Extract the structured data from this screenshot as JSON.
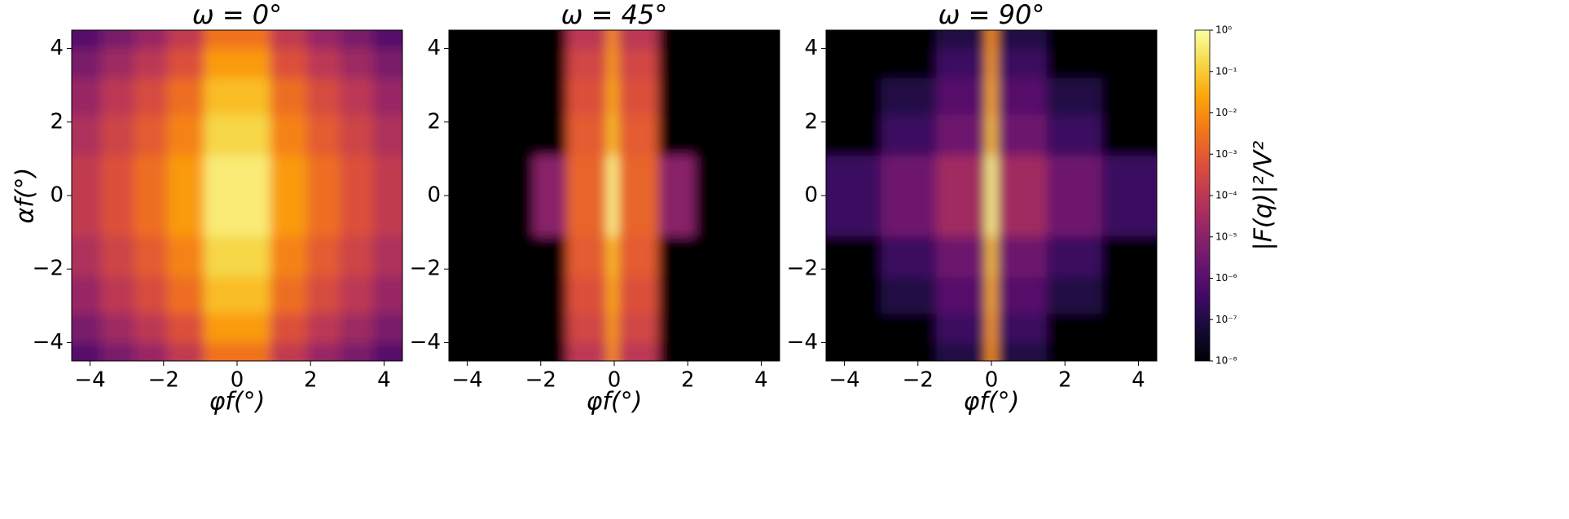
{
  "chart_data": [
    {
      "type": "heatmap",
      "title": "ω = 0°",
      "xlabel": "φf(°)",
      "ylabel": "αf(°)",
      "x": [
        -4.5,
        -3.7,
        -2.8,
        -1.9,
        -0.9,
        0.9,
        1.9,
        2.8,
        3.7,
        4.5
      ],
      "y": [
        -4.5,
        -4.0,
        -3.2,
        -2.2,
        -1.1,
        1.1,
        2.2,
        3.2,
        4.0,
        4.5
      ],
      "z": [
        [
          1e-06,
          5e-06,
          2e-05,
          0.00013,
          0.003,
          0.00013,
          2e-05,
          5e-06,
          1e-06
        ],
        [
          5e-06,
          2.5e-05,
          0.0001,
          0.0006,
          0.016,
          0.0006,
          0.0001,
          2.5e-05,
          5e-06
        ],
        [
          2e-05,
          0.0001,
          0.0004,
          0.0025,
          0.06,
          0.0025,
          0.0004,
          0.0001,
          2e-05
        ],
        [
          5e-05,
          0.00025,
          0.001,
          0.006,
          0.16,
          0.006,
          0.001,
          0.00025,
          5e-05
        ],
        [
          0.00013,
          0.0006,
          0.0025,
          0.016,
          0.4,
          0.016,
          0.0025,
          0.0006,
          0.00013
        ],
        [
          5e-05,
          0.00025,
          0.001,
          0.006,
          0.16,
          0.006,
          0.001,
          0.00025,
          5e-05
        ],
        [
          2e-05,
          0.0001,
          0.0004,
          0.0025,
          0.06,
          0.0025,
          0.0004,
          0.0001,
          2e-05
        ],
        [
          5e-06,
          2.5e-05,
          0.0001,
          0.0006,
          0.016,
          0.0006,
          0.0001,
          2.5e-05,
          5e-06
        ],
        [
          1e-06,
          5e-06,
          2e-05,
          0.00013,
          0.003,
          0.00013,
          2e-05,
          5e-06,
          1e-06
        ]
      ],
      "xlim": [
        -4.5,
        4.5
      ],
      "ylim": [
        -4.5,
        4.5
      ],
      "xticks": [
        {
          "value": -4,
          "label": "−4"
        },
        {
          "value": -2,
          "label": "−2"
        },
        0,
        2,
        4
      ],
      "yticks": [
        {
          "value": -4,
          "label": "−4"
        },
        {
          "value": -2,
          "label": "−2"
        },
        0,
        2,
        4
      ]
    },
    {
      "type": "heatmap",
      "title": "ω = 45°",
      "xlabel": "φf(°)",
      "x": [
        -4.5,
        -2.2,
        -1.3,
        -0.2,
        0.1,
        1.2,
        2.2,
        4.5
      ],
      "y": [
        -4.5,
        -4.0,
        -3.2,
        -2.2,
        -1.1,
        1.1,
        2.2,
        3.2,
        4.0,
        4.5
      ],
      "z": [
        [
          1e-08,
          1e-08,
          0.0001,
          0.01,
          0.0001,
          1e-08,
          1e-08
        ],
        [
          1e-08,
          1e-08,
          0.0003,
          0.016,
          0.0003,
          1e-08,
          1e-08
        ],
        [
          1e-08,
          1e-08,
          0.0006,
          0.03,
          0.0006,
          1e-08,
          1e-08
        ],
        [
          1e-08,
          1e-08,
          0.001,
          0.06,
          0.001,
          1e-08,
          1e-08
        ],
        [
          1e-08,
          1e-05,
          0.0016,
          0.6,
          0.0016,
          1e-05,
          1e-08
        ],
        [
          1e-08,
          1e-08,
          0.001,
          0.06,
          0.001,
          1e-08,
          1e-08
        ],
        [
          1e-08,
          1e-08,
          0.0006,
          0.03,
          0.0006,
          1e-08,
          1e-08
        ],
        [
          1e-08,
          1e-08,
          0.0003,
          0.016,
          0.0003,
          1e-08,
          1e-08
        ],
        [
          1e-08,
          1e-08,
          0.0001,
          0.01,
          0.0001,
          1e-08,
          1e-08
        ]
      ],
      "xlim": [
        -4.5,
        4.5
      ],
      "ylim": [
        -4.5,
        4.5
      ],
      "xticks": [
        {
          "value": -4,
          "label": "−4"
        },
        {
          "value": -2,
          "label": "−2"
        },
        0,
        2,
        4
      ],
      "yticks": [
        {
          "value": -4,
          "label": "−4"
        },
        {
          "value": -2,
          "label": "−2"
        },
        0,
        2,
        4
      ]
    },
    {
      "type": "heatmap",
      "title": "ω = 90°",
      "xlabel": "φf(°)",
      "x": [
        -4.5,
        -3.0,
        -1.5,
        -0.15,
        0.15,
        1.5,
        3.0,
        4.5
      ],
      "y": [
        -4.5,
        -4.0,
        -3.2,
        -2.2,
        -1.1,
        1.1,
        2.2,
        3.2,
        4.0,
        4.5
      ],
      "z": [
        [
          1e-08,
          1e-08,
          1e-07,
          0.01,
          1e-07,
          1e-08,
          1e-08
        ],
        [
          1e-08,
          1e-08,
          3e-07,
          0.016,
          3e-07,
          1e-08,
          1e-08
        ],
        [
          1e-08,
          1e-07,
          1e-06,
          0.03,
          1e-06,
          1e-07,
          1e-08
        ],
        [
          1e-08,
          3e-07,
          3e-06,
          0.06,
          3e-06,
          3e-07,
          1e-08
        ],
        [
          3e-07,
          3e-06,
          3e-05,
          0.6,
          3e-05,
          3e-06,
          3e-07
        ],
        [
          1e-08,
          3e-07,
          3e-06,
          0.06,
          3e-06,
          3e-07,
          1e-08
        ],
        [
          1e-08,
          1e-07,
          1e-06,
          0.03,
          1e-06,
          1e-07,
          1e-08
        ],
        [
          1e-08,
          1e-08,
          3e-07,
          0.016,
          3e-07,
          1e-08,
          1e-08
        ],
        [
          1e-08,
          1e-08,
          1e-07,
          0.01,
          1e-07,
          1e-08,
          1e-08
        ]
      ],
      "xlim": [
        -4.5,
        4.5
      ],
      "ylim": [
        -4.5,
        4.5
      ],
      "xticks": [
        {
          "value": -4,
          "label": "−4"
        },
        {
          "value": -2,
          "label": "−2"
        },
        0,
        2,
        4
      ],
      "yticks": [
        {
          "value": -4,
          "label": "−4"
        },
        {
          "value": -2,
          "label": "−2"
        },
        0,
        2,
        4
      ]
    },
    {
      "type": "colorbar",
      "label": "|F(q)|²/V²",
      "zlim": [
        1e-08,
        1
      ],
      "log": true,
      "colormap": "inferno",
      "zticks": [
        {
          "value": 1e-08,
          "label": "10⁻⁸"
        },
        {
          "value": 1e-07,
          "label": "10⁻⁷"
        },
        {
          "value": 1e-06,
          "label": "10⁻⁶"
        },
        {
          "value": 1e-05,
          "label": "10⁻⁵"
        },
        {
          "value": 0.0001,
          "label": "10⁻⁴"
        },
        {
          "value": 0.001,
          "label": "10⁻³"
        },
        {
          "value": 0.01,
          "label": "10⁻²"
        },
        {
          "value": 0.1,
          "label": "10⁻¹"
        },
        {
          "value": 1,
          "label": "10⁰"
        }
      ]
    }
  ]
}
